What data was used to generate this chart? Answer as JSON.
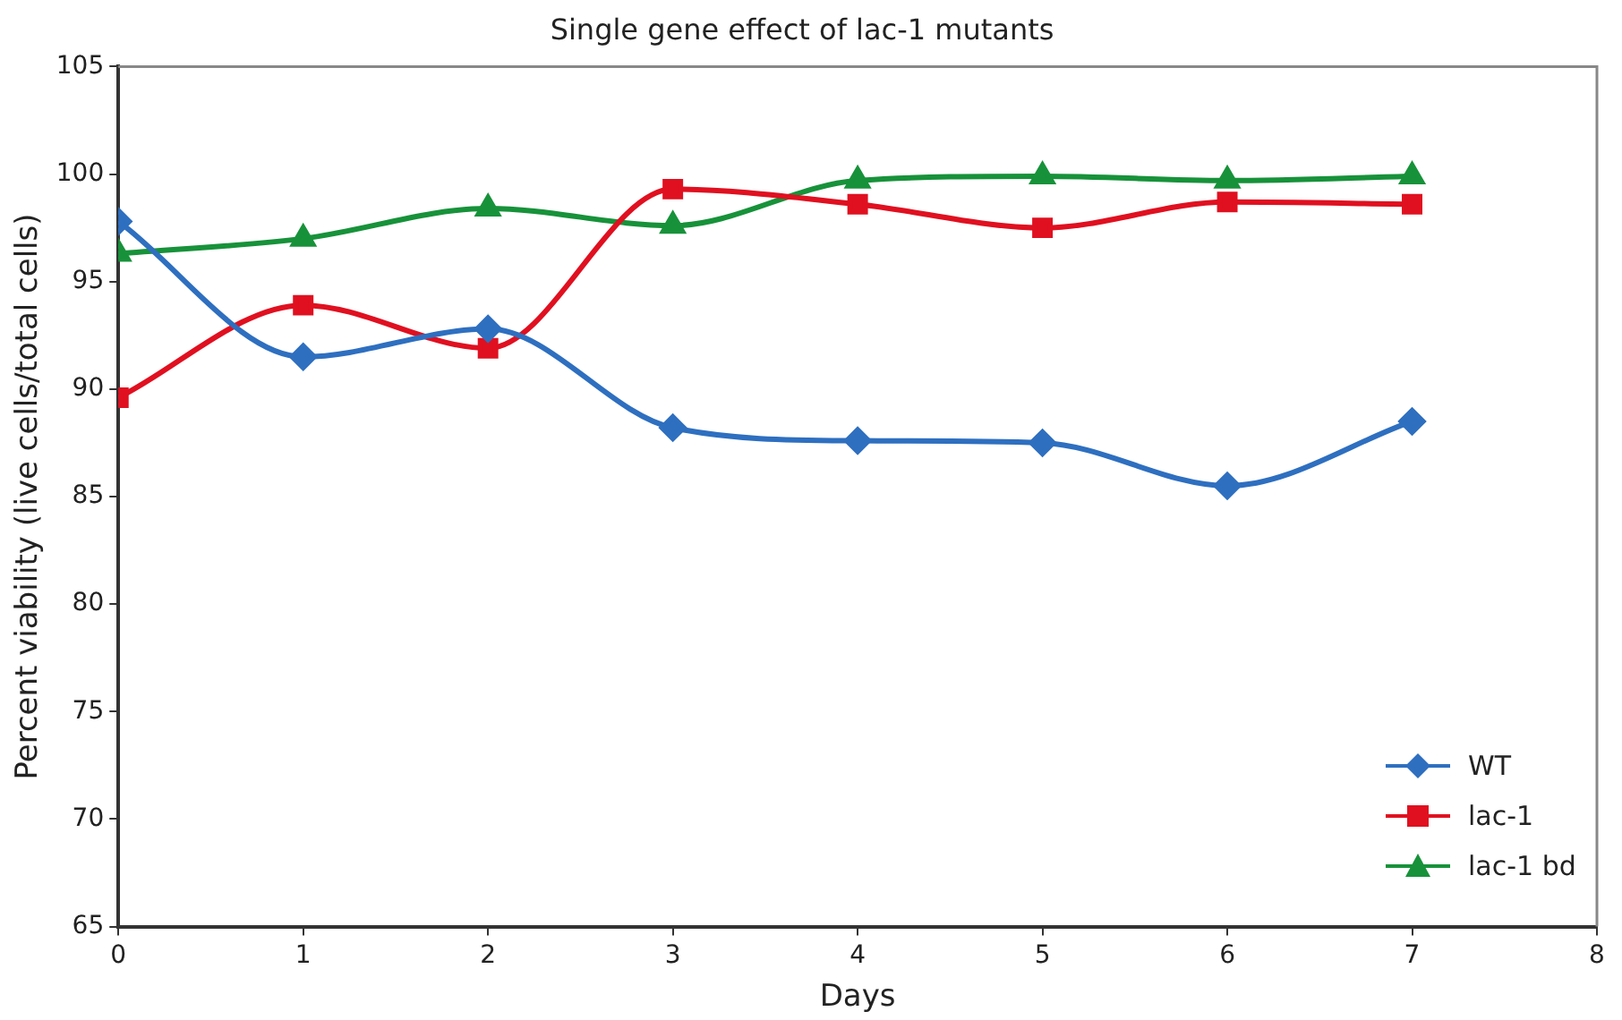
{
  "chart_data": {
    "type": "line",
    "title": "Single gene effect of lac-1 mutants",
    "xlabel": "Days",
    "ylabel": "Percent viability (live cells/total cells)",
    "x": [
      0,
      1,
      2,
      3,
      4,
      5,
      6,
      7
    ],
    "series": [
      {
        "name": "WT",
        "color": "#2e6fc0",
        "marker": "diamond",
        "values": [
          97.8,
          91.5,
          92.8,
          88.2,
          87.6,
          87.5,
          85.5,
          88.5
        ]
      },
      {
        "name": "lac-1",
        "color": "#e01020",
        "marker": "square",
        "values": [
          89.6,
          93.9,
          91.9,
          99.3,
          98.6,
          97.5,
          98.7,
          98.6
        ]
      },
      {
        "name": "lac-1 bd",
        "color": "#17923a",
        "marker": "triangle",
        "values": [
          96.3,
          97.0,
          98.4,
          97.6,
          99.7,
          99.9,
          99.7,
          99.9
        ]
      }
    ],
    "xlim": [
      0,
      8
    ],
    "xticks": [
      0,
      1,
      2,
      3,
      4,
      5,
      6,
      7,
      8
    ],
    "ylim": [
      65,
      105
    ],
    "yticks": [
      65,
      70,
      75,
      80,
      85,
      90,
      95,
      100,
      105
    ],
    "grid": false,
    "legend": "bottom right",
    "line_style": "solid"
  }
}
